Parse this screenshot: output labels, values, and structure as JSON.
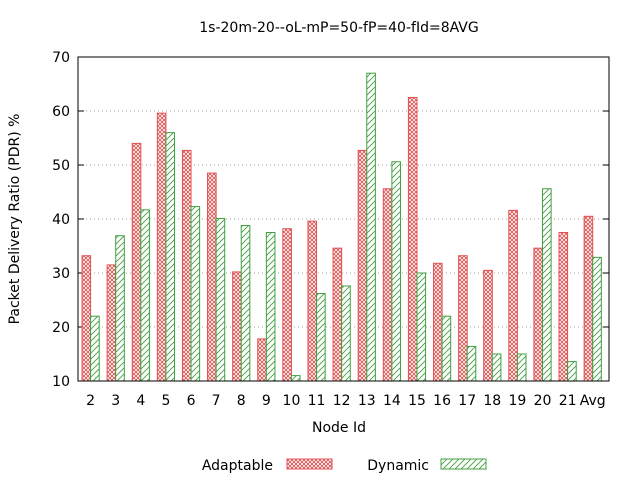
{
  "chart_data": {
    "type": "bar",
    "title": "1s-20m-20--oL-mP=50-fP=40-fId=8AVG",
    "xlabel": "Node Id",
    "ylabel": "Packet Delivery Ratio (PDR) %",
    "ylim": [
      10,
      70
    ],
    "yticks": [
      10,
      20,
      30,
      40,
      50,
      60,
      70
    ],
    "grid": true,
    "legend_position": "bottom",
    "categories": [
      "2",
      "3",
      "4",
      "5",
      "6",
      "7",
      "8",
      "9",
      "10",
      "11",
      "12",
      "13",
      "14",
      "15",
      "16",
      "17",
      "18",
      "19",
      "20",
      "21",
      "Avg"
    ],
    "series": [
      {
        "name": "Adaptable",
        "color": "#e05050",
        "pattern": "crosshatch",
        "values": [
          33.2,
          31.5,
          54.0,
          59.6,
          52.7,
          48.5,
          30.2,
          17.8,
          38.2,
          39.6,
          34.6,
          52.7,
          45.6,
          62.5,
          31.8,
          33.2,
          30.5,
          41.6,
          34.6,
          37.5,
          40.5
        ]
      },
      {
        "name": "Dynamic",
        "color": "#40a040",
        "pattern": "diagonal",
        "values": [
          22.0,
          36.9,
          41.7,
          56.0,
          42.3,
          40.1,
          38.8,
          37.5,
          11.0,
          26.2,
          27.6,
          67.0,
          50.6,
          30.0,
          22.0,
          16.4,
          15.0,
          15.0,
          45.6,
          13.6,
          32.9
        ]
      }
    ]
  }
}
